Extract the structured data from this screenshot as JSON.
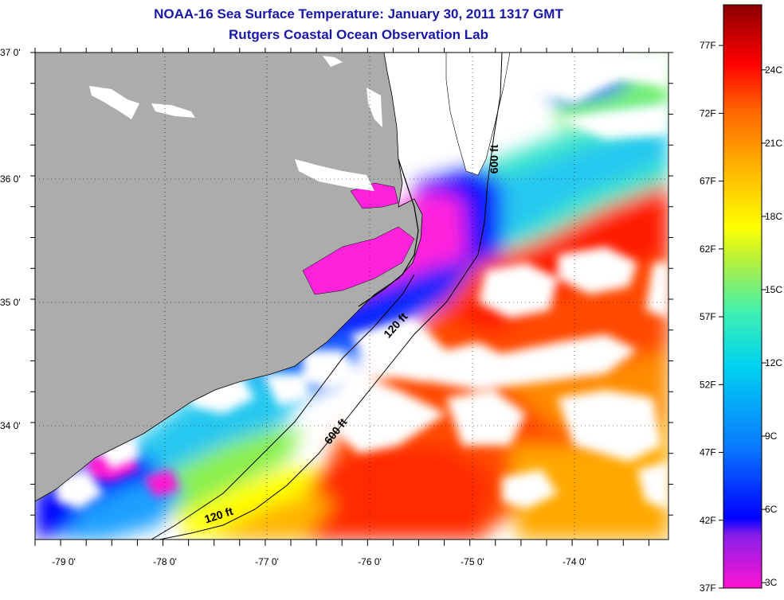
{
  "title": "NOAA-16 Sea Surface Temperature:  January 30, 2011 1317 GMT",
  "subtitle": "Rutgers Coastal Ocean Observation Lab",
  "lat_labels": [
    "37 0'",
    "36 0'",
    "35 0'",
    "34 0'"
  ],
  "lon_labels": [
    "-79 0'",
    "-78 0'",
    "-77 0'",
    "-76 0'",
    "-75 0'",
    "-74 0'"
  ],
  "isobaths": [
    {
      "label": "600 ft",
      "where": "offshore-north"
    },
    {
      "label": "120 ft",
      "where": "shelf-mid"
    },
    {
      "label": "600 ft",
      "where": "offshore-south"
    },
    {
      "label": "120 ft",
      "where": "shelf-south"
    }
  ],
  "colorbar": {
    "fahrenheit_labels": [
      "77F",
      "72F",
      "67F",
      "62F",
      "57F",
      "52F",
      "47F",
      "42F",
      "37F"
    ],
    "celsius_labels": [
      "24C",
      "21C",
      "18C",
      "15C",
      "12C",
      "9C",
      "6C",
      "3C"
    ],
    "stops": [
      "#ff14d2",
      "#8a1ee8",
      "#0000ff",
      "#0a78ff",
      "#00d2f0",
      "#3cf0b4",
      "#b4f03c",
      "#ffff00",
      "#ffb400",
      "#ff6400",
      "#ff0000",
      "#8c0000"
    ]
  },
  "colors": {
    "land": "#acacac",
    "cloud": "#ffffff",
    "title": "#1818a8"
  }
}
